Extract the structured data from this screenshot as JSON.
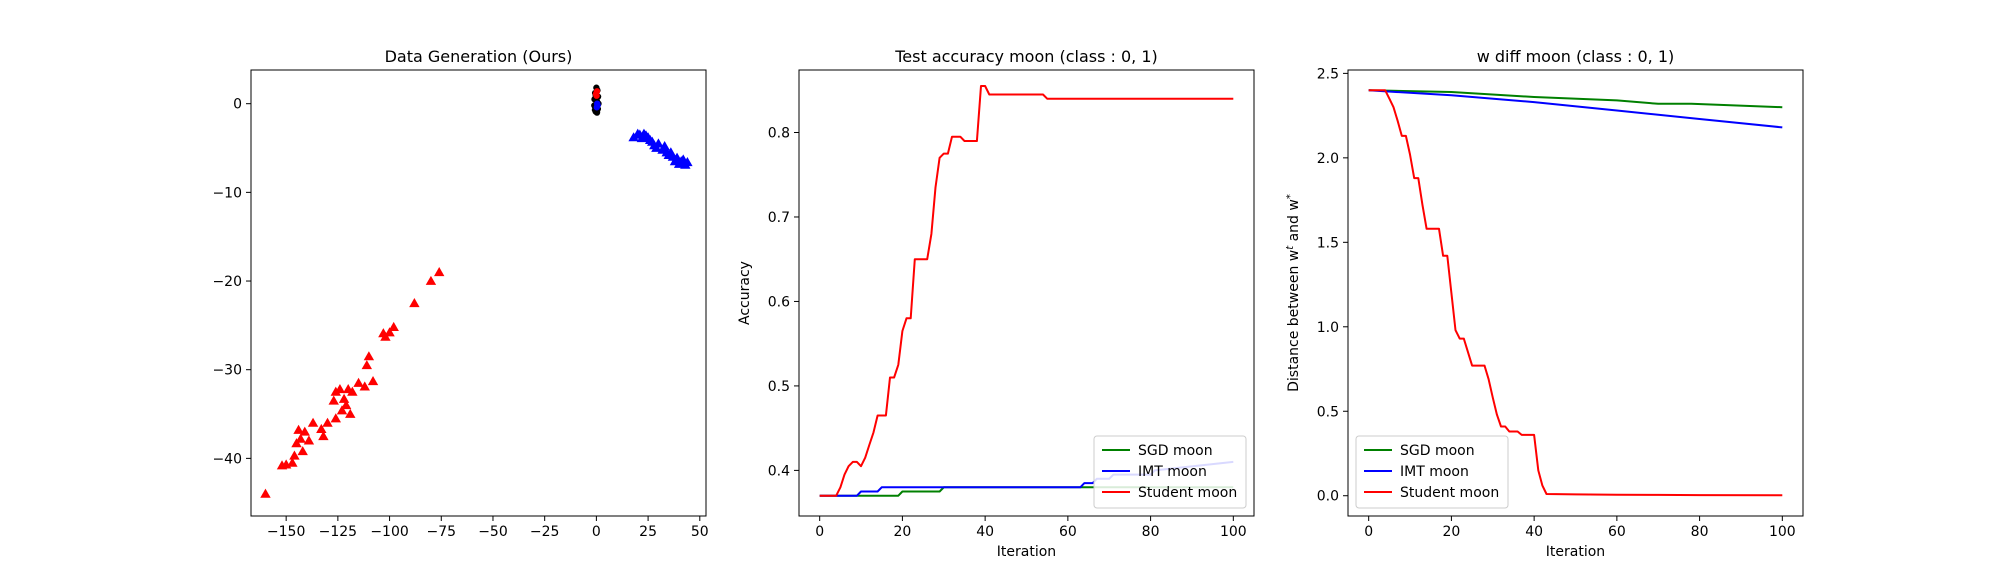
{
  "chart_data": [
    {
      "type": "scatter",
      "title": "Data Generation (Ours)",
      "xlabel": "",
      "ylabel": "",
      "xlim": [
        -167,
        53
      ],
      "ylim": [
        -46.5,
        3.8
      ],
      "xticks": [
        -150,
        -125,
        -100,
        -75,
        -50,
        -25,
        0,
        25,
        50
      ],
      "xtick_labels": [
        "−150",
        "−125",
        "−100",
        "−75",
        "−50",
        "−25",
        "0",
        "25",
        "50"
      ],
      "yticks": [
        0,
        -10,
        -20,
        -30,
        -40
      ],
      "ytick_labels": [
        "0",
        "−10",
        "−20",
        "−30",
        "−40"
      ],
      "grid": false,
      "series": [
        {
          "marker": "triangle",
          "color": "#ff0000",
          "points": [
            [
              -76,
              -19
            ],
            [
              -80,
              -20
            ],
            [
              -88,
              -22.5
            ],
            [
              -98,
              -25.2
            ],
            [
              -100,
              -25.8
            ],
            [
              -102,
              -26.3
            ],
            [
              -103,
              -25.9
            ],
            [
              -110,
              -28.5
            ],
            [
              -111,
              -29.5
            ],
            [
              -108,
              -31.3
            ],
            [
              -112,
              -31.9
            ],
            [
              -115,
              -31.5
            ],
            [
              -118,
              -32.5
            ],
            [
              -120,
              -32.2
            ],
            [
              -122,
              -33.3
            ],
            [
              -124,
              -32.2
            ],
            [
              -126,
              -32.5
            ],
            [
              -127,
              -33.5
            ],
            [
              -121,
              -34
            ],
            [
              -123,
              -34.6
            ],
            [
              -119,
              -35
            ],
            [
              -126,
              -35.5
            ],
            [
              -130,
              -36
            ],
            [
              -133,
              -36.7
            ],
            [
              -132,
              -37.5
            ],
            [
              -137,
              -36
            ],
            [
              -139,
              -38
            ],
            [
              -141,
              -37
            ],
            [
              -143,
              -37.8
            ],
            [
              -144,
              -36.8
            ],
            [
              -145,
              -38.3
            ],
            [
              -142,
              -39.2
            ],
            [
              -146,
              -39.7
            ],
            [
              -147,
              -40.5
            ],
            [
              -150,
              -40.7
            ],
            [
              -152,
              -40.8
            ],
            [
              -160,
              -44
            ]
          ]
        },
        {
          "marker": "triangle",
          "color": "#0000ff",
          "points": [
            [
              18,
              -3.8
            ],
            [
              20,
              -3.4
            ],
            [
              21,
              -3.5
            ],
            [
              22,
              -3.9
            ],
            [
              23,
              -3.4
            ],
            [
              24,
              -3.6
            ],
            [
              25,
              -3.8
            ],
            [
              26,
              -4.1
            ],
            [
              27,
              -4.3
            ],
            [
              28,
              -4.7
            ],
            [
              29,
              -5
            ],
            [
              30,
              -4.5
            ],
            [
              32,
              -5.2
            ],
            [
              33,
              -4.8
            ],
            [
              34,
              -5.5
            ],
            [
              35,
              -5.8
            ],
            [
              36,
              -5.5
            ],
            [
              37,
              -6
            ],
            [
              38,
              -6.5
            ],
            [
              39,
              -6.1
            ],
            [
              40,
              -6.8
            ],
            [
              41,
              -6.5
            ],
            [
              42,
              -6.3
            ],
            [
              43,
              -6.9
            ],
            [
              44,
              -6.6
            ]
          ]
        },
        {
          "marker": "dot",
          "color": "#000000",
          "points": [
            [
              0,
              1.8
            ],
            [
              0.5,
              1.5
            ],
            [
              -0.6,
              1.2
            ],
            [
              0.8,
              0.8
            ],
            [
              -0.9,
              0.5
            ],
            [
              1,
              0
            ],
            [
              -1,
              -0.2
            ],
            [
              0.7,
              -0.6
            ],
            [
              -0.7,
              -0.7
            ],
            [
              0.3,
              -1
            ],
            [
              -0.3,
              -0.9
            ],
            [
              0.4,
              0.2
            ],
            [
              -0.3,
              0.9
            ],
            [
              0.2,
              -0.3
            ]
          ]
        },
        {
          "marker": "dot",
          "color": "#ff0000",
          "points": [
            [
              -0.2,
              1.1
            ],
            [
              0.3,
              1.4
            ],
            [
              0.1,
              0.9
            ]
          ]
        },
        {
          "marker": "dot",
          "color": "#0000ff",
          "points": [
            [
              0.4,
              0
            ],
            [
              0.2,
              -0.4
            ],
            [
              0.6,
              -0.2
            ]
          ]
        }
      ]
    },
    {
      "type": "line",
      "title": "Test accuracy moon (class : 0, 1)",
      "xlabel": "Iteration",
      "ylabel": "Accuracy",
      "xlim": [
        -5,
        105
      ],
      "ylim": [
        0.346,
        0.874
      ],
      "xticks": [
        0,
        20,
        40,
        60,
        80,
        100
      ],
      "xtick_labels": [
        "0",
        "20",
        "40",
        "60",
        "80",
        "100"
      ],
      "yticks": [
        0.4,
        0.5,
        0.6,
        0.7,
        0.8
      ],
      "ytick_labels": [
        "0.4",
        "0.5",
        "0.6",
        "0.7",
        "0.8"
      ],
      "grid": false,
      "legend_position": "lower-right",
      "series": [
        {
          "name": "SGD moon",
          "color": "#008000",
          "x": [
            0,
            9,
            10,
            19,
            20,
            29,
            30,
            100
          ],
          "y": [
            0.37,
            0.37,
            0.37,
            0.37,
            0.375,
            0.375,
            0.38,
            0.38
          ]
        },
        {
          "name": "IMT moon",
          "color": "#0000ff",
          "x": [
            0,
            9,
            10,
            14,
            15,
            24,
            25,
            63,
            64,
            66,
            67,
            70,
            71,
            74,
            75,
            80,
            81,
            100
          ],
          "y": [
            0.37,
            0.37,
            0.375,
            0.375,
            0.38,
            0.38,
            0.38,
            0.38,
            0.385,
            0.385,
            0.39,
            0.39,
            0.395,
            0.395,
            0.395,
            0.395,
            0.4,
            0.41
          ]
        },
        {
          "name": "Student moon",
          "color": "#ff0000",
          "x": [
            0,
            4,
            5,
            6,
            7,
            8,
            9,
            10,
            11,
            12,
            13,
            14,
            16,
            17,
            18,
            19,
            20,
            21,
            22,
            23,
            24,
            25,
            26,
            27,
            28,
            29,
            30,
            31,
            32,
            33,
            34,
            35,
            36,
            37,
            38,
            39,
            40,
            41,
            42,
            43,
            45,
            50,
            54,
            55,
            60,
            100
          ],
          "y": [
            0.37,
            0.37,
            0.38,
            0.395,
            0.405,
            0.41,
            0.41,
            0.405,
            0.415,
            0.43,
            0.445,
            0.465,
            0.465,
            0.51,
            0.51,
            0.525,
            0.565,
            0.58,
            0.58,
            0.65,
            0.65,
            0.65,
            0.65,
            0.68,
            0.735,
            0.77,
            0.775,
            0.775,
            0.795,
            0.795,
            0.795,
            0.79,
            0.79,
            0.79,
            0.79,
            0.855,
            0.855,
            0.845,
            0.845,
            0.845,
            0.845,
            0.845,
            0.845,
            0.84,
            0.84,
            0.84
          ]
        }
      ]
    },
    {
      "type": "line",
      "title": "w diff moon (class : 0, 1)",
      "xlabel": "Iteration",
      "ylabel": "Distance between w^t and w^*",
      "xlim": [
        -5,
        105
      ],
      "ylim": [
        -0.12,
        2.52
      ],
      "xticks": [
        0,
        20,
        40,
        60,
        80,
        100
      ],
      "xtick_labels": [
        "0",
        "20",
        "40",
        "60",
        "80",
        "100"
      ],
      "yticks": [
        0.0,
        0.5,
        1.0,
        1.5,
        2.0,
        2.5
      ],
      "ytick_labels": [
        "0.0",
        "0.5",
        "1.0",
        "1.5",
        "2.0",
        "2.5"
      ],
      "grid": false,
      "legend_position": "lower-left",
      "series": [
        {
          "name": "SGD moon",
          "color": "#008000",
          "x": [
            0,
            20,
            40,
            60,
            70,
            78,
            100
          ],
          "y": [
            2.4,
            2.39,
            2.36,
            2.34,
            2.32,
            2.32,
            2.3
          ]
        },
        {
          "name": "IMT moon",
          "color": "#0000ff",
          "x": [
            0,
            20,
            40,
            60,
            80,
            100
          ],
          "y": [
            2.4,
            2.37,
            2.33,
            2.28,
            2.23,
            2.18
          ]
        },
        {
          "name": "Student moon",
          "color": "#ff0000",
          "x": [
            0,
            4,
            5,
            6,
            7,
            8,
            9,
            10,
            11,
            12,
            13,
            14,
            15,
            16,
            17,
            18,
            19,
            20,
            21,
            22,
            23,
            25,
            26,
            27,
            28,
            29,
            30,
            31,
            32,
            33,
            34,
            35,
            36,
            37,
            38,
            39,
            40,
            41,
            42,
            43,
            50,
            60,
            70,
            80,
            100
          ],
          "y": [
            2.4,
            2.4,
            2.35,
            2.3,
            2.22,
            2.13,
            2.13,
            2.02,
            1.88,
            1.88,
            1.72,
            1.58,
            1.58,
            1.58,
            1.58,
            1.42,
            1.42,
            1.2,
            0.98,
            0.93,
            0.93,
            0.77,
            0.77,
            0.77,
            0.77,
            0.69,
            0.58,
            0.48,
            0.41,
            0.41,
            0.38,
            0.38,
            0.38,
            0.36,
            0.36,
            0.36,
            0.36,
            0.15,
            0.06,
            0.01,
            0.008,
            0.006,
            0.005,
            0.004,
            0.003
          ]
        }
      ]
    }
  ]
}
